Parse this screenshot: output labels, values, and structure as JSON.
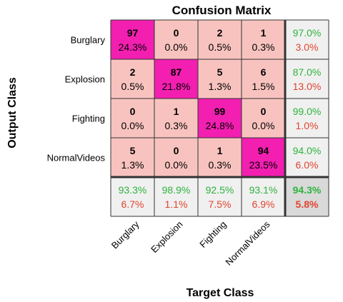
{
  "chart_data": {
    "type": "heatmap",
    "title": "Confusion Matrix",
    "xlabel": "Target Class",
    "ylabel": "Output Class",
    "row_labels": [
      "Burglary",
      "Explosion",
      "Fighting",
      "NormalVideos"
    ],
    "col_labels": [
      "Burglary",
      "Explosion",
      "Fighting",
      "NormalVideos"
    ],
    "counts": [
      [
        97,
        0,
        2,
        1
      ],
      [
        2,
        87,
        5,
        6
      ],
      [
        0,
        1,
        99,
        0
      ],
      [
        5,
        0,
        1,
        94
      ]
    ],
    "percents": [
      [
        "24.3%",
        "0.0%",
        "0.5%",
        "0.3%"
      ],
      [
        "0.5%",
        "21.8%",
        "1.3%",
        "1.5%"
      ],
      [
        "0.0%",
        "0.3%",
        "24.8%",
        "0.0%"
      ],
      [
        "1.3%",
        "0.0%",
        "0.3%",
        "23.5%"
      ]
    ],
    "row_summary": [
      {
        "correct": "97.0%",
        "error": "3.0%"
      },
      {
        "correct": "87.0%",
        "error": "13.0%"
      },
      {
        "correct": "99.0%",
        "error": "1.0%"
      },
      {
        "correct": "94.0%",
        "error": "6.0%"
      }
    ],
    "col_summary": [
      {
        "correct": "93.3%",
        "error": "6.7%"
      },
      {
        "correct": "98.9%",
        "error": "1.1%"
      },
      {
        "correct": "92.5%",
        "error": "7.5%"
      },
      {
        "correct": "93.1%",
        "error": "6.9%"
      }
    ],
    "overall": {
      "correct": "94.3%",
      "error": "5.8%"
    },
    "colors": {
      "diagonal": "#f21fb0",
      "off_diagonal": "#f8c3bf",
      "summary": "#f0f0f0",
      "overall": "#d9d9d9",
      "correct_text": "#2db33c",
      "error_text": "#e0442e"
    }
  }
}
